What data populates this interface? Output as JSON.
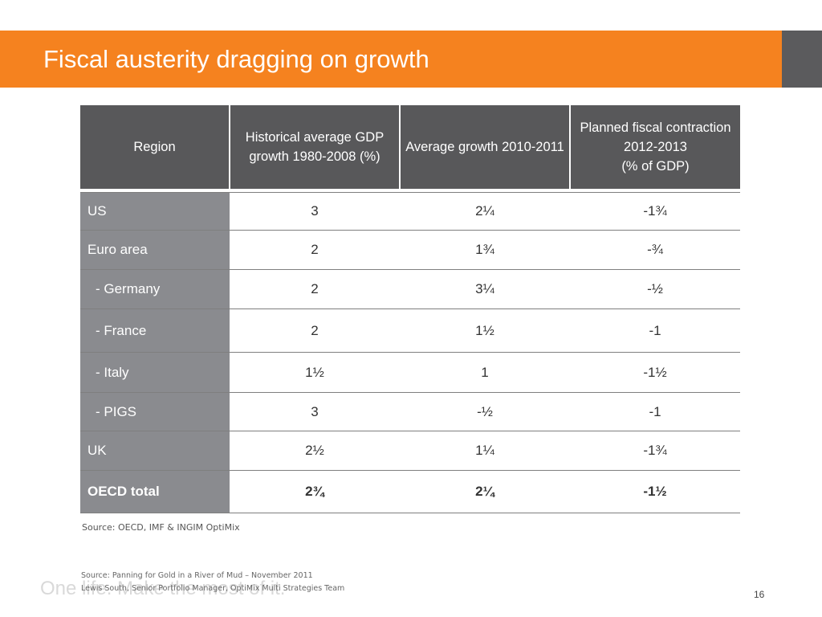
{
  "slide": {
    "title": "Fiscal austerity dragging on growth",
    "tagline": "One life. Make the most of it.",
    "page_number": "16"
  },
  "table": {
    "headers": [
      "Region",
      "Historical average GDP growth 1980-2008 (%)",
      "Average growth 2010-2011",
      "Planned fiscal contraction\n2012-2013\n(% of GDP)"
    ],
    "rows": [
      {
        "region": "US",
        "historical": "3",
        "growth": "2¼",
        "contraction": "-1¾"
      },
      {
        "region": "Euro area",
        "historical": "2",
        "growth": "1¾",
        "contraction": "-¾"
      },
      {
        "region": "- Germany",
        "historical": "2",
        "growth": "3¼",
        "contraction": "-½"
      },
      {
        "region": "- France",
        "historical": "2",
        "growth": "1½",
        "contraction": "-1"
      },
      {
        "region": "- Italy",
        "historical": "1½",
        "growth": "1",
        "contraction": "-1½"
      },
      {
        "region": "- PIGS",
        "historical": "3",
        "growth": "-½",
        "contraction": "-1"
      },
      {
        "region": "UK",
        "historical": "2½",
        "growth": "1¼",
        "contraction": "-1¾"
      },
      {
        "region": "OECD total",
        "historical": "2¾",
        "growth": "2¼",
        "contraction": "-1½"
      }
    ]
  },
  "source": "Source: OECD, IMF & INGIM OptiMix",
  "footer": {
    "line1": "Source: Panning for Gold in a River of Mud – November 2011",
    "line2": "Lewis South, Senior Portfolio Manager, OptiMix Multi Strategies Team"
  },
  "colors": {
    "title_bar": "#f5821f",
    "title_side": "#5b5b5d",
    "header_bg": "#58585a",
    "region_bg": "#8a8b8f"
  }
}
